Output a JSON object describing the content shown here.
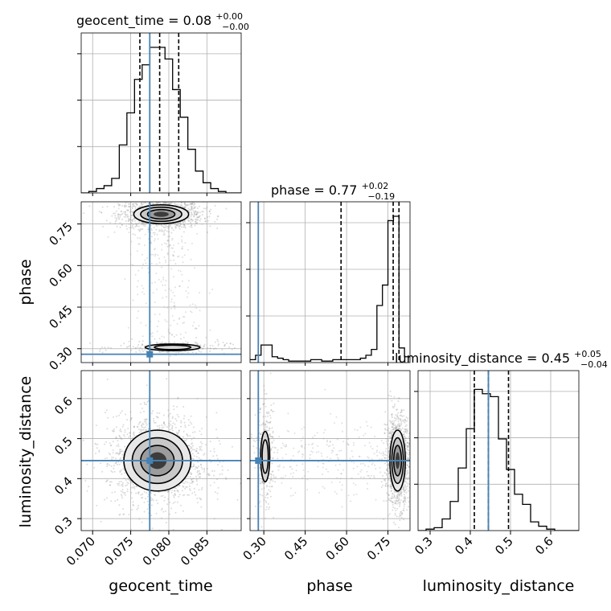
{
  "chart_data": {
    "type": "corner",
    "parameters": [
      "geocent_time",
      "phase",
      "luminosity_distance"
    ],
    "truths": {
      "geocent_time": 0.0775,
      "phase": 0.28,
      "luminosity_distance": 0.445
    },
    "titles": [
      {
        "param": "geocent_time",
        "prefix": "geocent_time = ",
        "value": "0.08",
        "plus": "+0.00",
        "minus": "−0.00"
      },
      {
        "param": "phase",
        "prefix": "phase = ",
        "value": "0.77",
        "plus": "+0.02",
        "minus": "−0.19"
      },
      {
        "param": "luminosity_distance",
        "prefix": "luminosity_distance = ",
        "value": "0.45",
        "plus": "+0.05",
        "minus": "−0.04"
      }
    ],
    "axes": {
      "geocent_time": {
        "range": [
          0.0685,
          0.0895
        ],
        "ticks": [
          0.07,
          0.075,
          0.08,
          0.085
        ],
        "tick_labels": [
          "0.070",
          "0.075",
          "0.080",
          "0.085"
        ]
      },
      "phase": {
        "range": [
          0.25,
          0.83
        ],
        "ticks": [
          0.3,
          0.45,
          0.6,
          0.75
        ],
        "tick_labels": [
          "0.30",
          "0.45",
          "0.60",
          "0.75"
        ]
      },
      "luminosity_distance": {
        "range": [
          0.27,
          0.67
        ],
        "ticks": [
          0.3,
          0.4,
          0.5,
          0.6
        ],
        "tick_labels": [
          "0.3",
          "0.4",
          "0.5",
          "0.6"
        ]
      }
    },
    "histograms": {
      "geocent_time": {
        "edges": [
          0.0685,
          0.0695,
          0.0705,
          0.0715,
          0.0725,
          0.0735,
          0.0745,
          0.0755,
          0.0765,
          0.0775,
          0.0785,
          0.0795,
          0.0805,
          0.0815,
          0.0825,
          0.0835,
          0.0845,
          0.0855,
          0.0865,
          0.0875,
          0.0885,
          0.0895
        ],
        "counts": [
          0.0,
          0.01,
          0.03,
          0.05,
          0.1,
          0.33,
          0.55,
          0.78,
          0.88,
          1.0,
          1.0,
          0.92,
          0.71,
          0.52,
          0.3,
          0.15,
          0.07,
          0.03,
          0.01,
          0.0,
          0.0
        ],
        "quantiles": [
          0.0762,
          0.0788,
          0.0813
        ]
      },
      "phase": {
        "edges": [
          0.25,
          0.27,
          0.29,
          0.31,
          0.33,
          0.35,
          0.37,
          0.39,
          0.41,
          0.43,
          0.45,
          0.47,
          0.49,
          0.51,
          0.53,
          0.55,
          0.57,
          0.59,
          0.61,
          0.63,
          0.65,
          0.67,
          0.69,
          0.71,
          0.73,
          0.75,
          0.77,
          0.79,
          0.81,
          0.83
        ],
        "counts": [
          0.02,
          0.05,
          0.12,
          0.12,
          0.04,
          0.03,
          0.02,
          0.01,
          0.01,
          0.01,
          0.01,
          0.02,
          0.02,
          0.01,
          0.01,
          0.02,
          0.02,
          0.02,
          0.02,
          0.02,
          0.03,
          0.05,
          0.09,
          0.39,
          0.53,
          0.97,
          1.0,
          0.1,
          0.04
        ],
        "quantiles": [
          0.58,
          0.769,
          0.79
        ]
      },
      "luminosity_distance": {
        "edges": [
          0.27,
          0.29,
          0.31,
          0.33,
          0.35,
          0.37,
          0.39,
          0.41,
          0.43,
          0.45,
          0.47,
          0.49,
          0.51,
          0.53,
          0.55,
          0.57,
          0.59,
          0.61,
          0.63,
          0.65,
          0.67
        ],
        "counts": [
          0.0,
          0.01,
          0.02,
          0.08,
          0.2,
          0.43,
          0.7,
          0.97,
          0.94,
          0.92,
          0.63,
          0.42,
          0.25,
          0.18,
          0.06,
          0.03,
          0.01,
          0.0,
          0.0,
          0.0
        ],
        "quantiles": [
          0.41,
          0.445,
          0.495
        ]
      }
    },
    "panels_2d": [
      {
        "x": "geocent_time",
        "y": "phase",
        "modes": [
          {
            "cx": 0.079,
            "cy": 0.785,
            "sx": 0.0018,
            "sy": 0.017,
            "weight": 1.0
          },
          {
            "cx": 0.0805,
            "cy": 0.305,
            "sx": 0.0024,
            "sy": 0.008,
            "weight": 0.18
          }
        ]
      },
      {
        "x": "geocent_time",
        "y": "luminosity_distance",
        "modes": [
          {
            "cx": 0.0785,
            "cy": 0.445,
            "sx": 0.0022,
            "sy": 0.038,
            "weight": 1.0
          }
        ]
      },
      {
        "x": "phase",
        "y": "luminosity_distance",
        "modes": [
          {
            "cx": 0.785,
            "cy": 0.445,
            "sx": 0.014,
            "sy": 0.038,
            "weight": 1.0
          },
          {
            "cx": 0.305,
            "cy": 0.455,
            "sx": 0.011,
            "sy": 0.042,
            "weight": 0.25
          }
        ]
      }
    ],
    "colors": {
      "truth": "#4682b4",
      "hist": "#000000",
      "density": "#000000",
      "grid": "#b0b0b0"
    }
  }
}
